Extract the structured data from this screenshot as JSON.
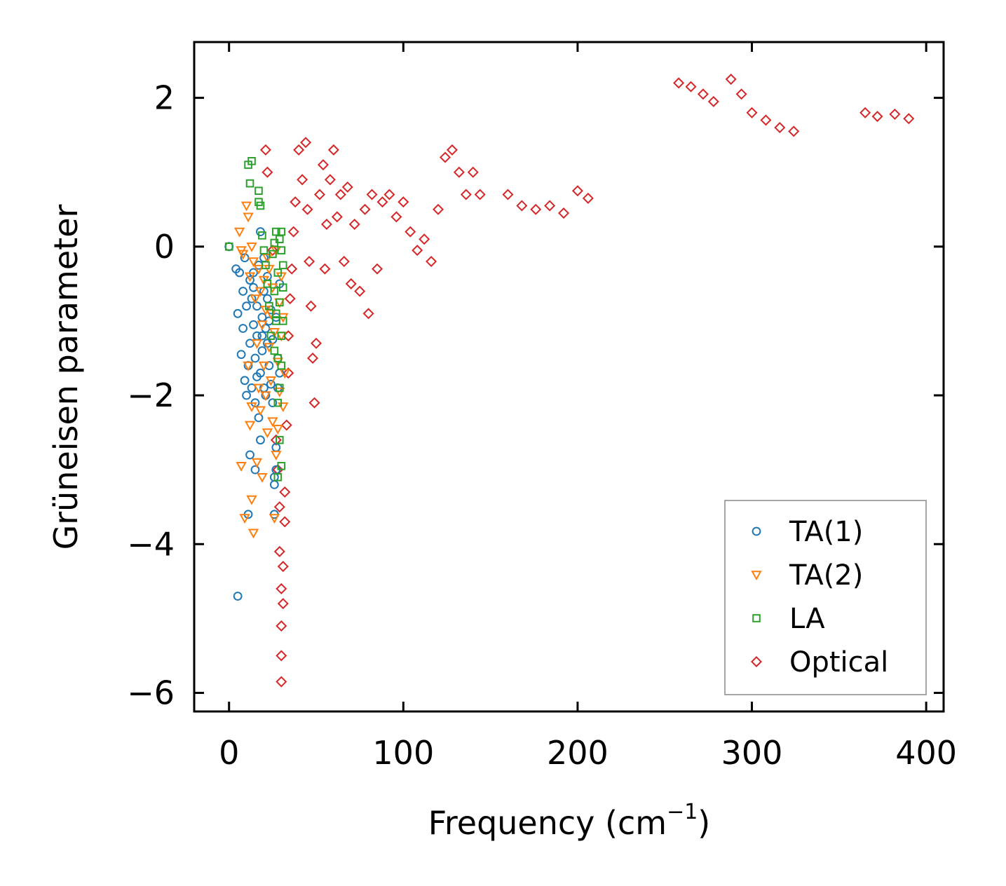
{
  "chart_data": {
    "type": "scatter",
    "title": "",
    "xlabel": "Frequency (cm",
    "xlabel_sup": "−1",
    "xlabel_tail": ")",
    "ylabel": "Grüneisen parameter",
    "xlim": [
      -20,
      410
    ],
    "ylim": [
      -6.25,
      2.75
    ],
    "xticks": [
      0,
      100,
      200,
      300,
      400
    ],
    "xtick_labels": [
      "0",
      "100",
      "200",
      "300",
      "400"
    ],
    "yticks": [
      -6,
      -4,
      -2,
      0,
      2
    ],
    "ytick_labels": [
      "−6",
      "−4",
      "−2",
      "0",
      "2"
    ],
    "grid": false,
    "legend_position": "bottom-right",
    "series": [
      {
        "name": "TA(1)",
        "marker": "circle",
        "color": "#1f77b4",
        "points": [
          [
            0,
            0
          ],
          [
            4,
            -0.3
          ],
          [
            5,
            -0.9
          ],
          [
            5,
            -4.7
          ],
          [
            7,
            -1.45
          ],
          [
            8,
            -0.6
          ],
          [
            8,
            -1.1
          ],
          [
            9,
            -1.8
          ],
          [
            10,
            -2.0
          ],
          [
            10,
            -0.8
          ],
          [
            11,
            -3.6
          ],
          [
            11,
            -1.6
          ],
          [
            12,
            -0.45
          ],
          [
            12,
            -1.3
          ],
          [
            12,
            -2.8
          ],
          [
            13,
            -0.7
          ],
          [
            13,
            -1.9
          ],
          [
            14,
            -0.55
          ],
          [
            14,
            -1.05
          ],
          [
            15,
            -2.1
          ],
          [
            15,
            -3.0
          ],
          [
            15,
            -1.5
          ],
          [
            16,
            -0.8
          ],
          [
            16,
            -1.2
          ],
          [
            17,
            -2.3
          ],
          [
            17,
            -0.25
          ],
          [
            18,
            -1.7
          ],
          [
            18,
            -2.6
          ],
          [
            19,
            -0.95
          ],
          [
            19,
            -1.4
          ],
          [
            20,
            -1.9
          ],
          [
            20,
            -0.6
          ],
          [
            21,
            -1.1
          ],
          [
            21,
            -2.0
          ],
          [
            22,
            -1.3
          ],
          [
            22,
            -0.7
          ],
          [
            23,
            -1.6
          ],
          [
            23,
            -1.0
          ],
          [
            24,
            -1.85
          ],
          [
            24,
            -0.85
          ],
          [
            25,
            -1.25
          ],
          [
            25,
            -2.1
          ],
          [
            26,
            -3.1
          ],
          [
            26,
            -3.2
          ],
          [
            26,
            -3.6
          ],
          [
            27,
            -0.95
          ],
          [
            27,
            -2.7
          ],
          [
            27,
            -3.0
          ],
          [
            28,
            -1.5
          ],
          [
            28,
            -1.9
          ],
          [
            29,
            -1.7
          ],
          [
            29,
            -0.5
          ],
          [
            18,
            0.2
          ],
          [
            20,
            -0.15
          ],
          [
            22,
            -0.4
          ],
          [
            9,
            -0.15
          ],
          [
            6,
            -0.35
          ],
          [
            14,
            -0.35
          ],
          [
            16,
            -1.75
          ],
          [
            19,
            -1.2
          ]
        ]
      },
      {
        "name": "TA(2)",
        "marker": "triangle",
        "color": "#ff7f0e",
        "points": [
          [
            6,
            0.2
          ],
          [
            7,
            -0.05
          ],
          [
            8,
            -0.1
          ],
          [
            10,
            0.55
          ],
          [
            11,
            0.4
          ],
          [
            12,
            -0.4
          ],
          [
            12,
            -2.4
          ],
          [
            13,
            0.0
          ],
          [
            13,
            -3.4
          ],
          [
            14,
            -0.2
          ],
          [
            14,
            -3.85
          ],
          [
            15,
            -0.7
          ],
          [
            16,
            -1.3
          ],
          [
            16,
            -2.9
          ],
          [
            17,
            -1.9
          ],
          [
            17,
            -0.3
          ],
          [
            18,
            -0.6
          ],
          [
            18,
            -2.2
          ],
          [
            19,
            -1.05
          ],
          [
            19,
            -3.1
          ],
          [
            20,
            -0.45
          ],
          [
            20,
            -1.6
          ],
          [
            21,
            -2.0
          ],
          [
            21,
            -0.85
          ],
          [
            22,
            -2.5
          ],
          [
            22,
            -0.15
          ],
          [
            23,
            -1.35
          ],
          [
            23,
            -0.3
          ],
          [
            24,
            -0.9
          ],
          [
            24,
            -1.8
          ],
          [
            25,
            -2.35
          ],
          [
            25,
            -0.55
          ],
          [
            26,
            -1.15
          ],
          [
            26,
            -3.65
          ],
          [
            27,
            -2.8
          ],
          [
            27,
            -0.05
          ],
          [
            28,
            -1.55
          ],
          [
            28,
            -2.45
          ],
          [
            29,
            -0.75
          ],
          [
            29,
            -1.95
          ],
          [
            30,
            -0.4
          ],
          [
            30,
            -1.2
          ],
          [
            31,
            -2.15
          ],
          [
            31,
            -0.95
          ],
          [
            32,
            -1.7
          ],
          [
            7,
            -2.95
          ],
          [
            9,
            -3.65
          ],
          [
            11,
            -1.6
          ],
          [
            13,
            -2.15
          ]
        ]
      },
      {
        "name": "LA",
        "marker": "square",
        "color": "#2ca02c",
        "points": [
          [
            0,
            0
          ],
          [
            11,
            1.1
          ],
          [
            12,
            0.85
          ],
          [
            13,
            1.15
          ],
          [
            17,
            0.75
          ],
          [
            17,
            0.6
          ],
          [
            18,
            0.55
          ],
          [
            19,
            0.15
          ],
          [
            20,
            -0.05
          ],
          [
            21,
            -0.25
          ],
          [
            22,
            -0.5
          ],
          [
            23,
            -0.8
          ],
          [
            24,
            -1.2
          ],
          [
            25,
            -0.1
          ],
          [
            26,
            0.05
          ],
          [
            26,
            -0.6
          ],
          [
            27,
            0.2
          ],
          [
            27,
            -1.0
          ],
          [
            28,
            -1.5
          ],
          [
            28,
            -0.35
          ],
          [
            29,
            0.1
          ],
          [
            29,
            -0.75
          ],
          [
            30,
            -1.2
          ],
          [
            30,
            -0.05
          ],
          [
            31,
            -0.55
          ],
          [
            31,
            -1.0
          ],
          [
            29,
            -1.9
          ],
          [
            30,
            -1.6
          ],
          [
            28,
            -2.1
          ],
          [
            29,
            -2.6
          ],
          [
            30,
            -2.95
          ],
          [
            28,
            -3.1
          ],
          [
            27,
            -0.9
          ],
          [
            26,
            -1.4
          ],
          [
            31,
            -0.25
          ],
          [
            30,
            0.2
          ]
        ]
      },
      {
        "name": "Optical",
        "marker": "diamond",
        "color": "#d62728",
        "points": [
          [
            21,
            1.3
          ],
          [
            22,
            1.0
          ],
          [
            25,
            -0.05
          ],
          [
            27,
            -2.6
          ],
          [
            28,
            -3.0
          ],
          [
            29,
            -3.5
          ],
          [
            29,
            -4.1
          ],
          [
            30,
            -4.6
          ],
          [
            30,
            -5.1
          ],
          [
            30,
            -5.85
          ],
          [
            30,
            -5.5
          ],
          [
            31,
            -4.8
          ],
          [
            31,
            -4.3
          ],
          [
            32,
            -3.7
          ],
          [
            32,
            -3.3
          ],
          [
            33,
            -2.4
          ],
          [
            34,
            -1.7
          ],
          [
            34,
            -1.2
          ],
          [
            35,
            -0.7
          ],
          [
            36,
            -0.3
          ],
          [
            37,
            0.2
          ],
          [
            38,
            0.6
          ],
          [
            40,
            1.3
          ],
          [
            42,
            0.9
          ],
          [
            44,
            1.4
          ],
          [
            45,
            0.5
          ],
          [
            46,
            -0.2
          ],
          [
            47,
            -0.8
          ],
          [
            48,
            -1.5
          ],
          [
            49,
            -2.1
          ],
          [
            50,
            -1.3
          ],
          [
            52,
            0.7
          ],
          [
            54,
            1.1
          ],
          [
            55,
            -0.3
          ],
          [
            56,
            0.3
          ],
          [
            58,
            0.9
          ],
          [
            60,
            1.3
          ],
          [
            62,
            0.4
          ],
          [
            64,
            0.7
          ],
          [
            66,
            -0.2
          ],
          [
            68,
            0.8
          ],
          [
            70,
            -0.5
          ],
          [
            72,
            0.3
          ],
          [
            75,
            -0.6
          ],
          [
            78,
            0.5
          ],
          [
            80,
            -0.9
          ],
          [
            82,
            0.7
          ],
          [
            85,
            -0.3
          ],
          [
            88,
            0.6
          ],
          [
            92,
            0.7
          ],
          [
            96,
            0.4
          ],
          [
            100,
            0.6
          ],
          [
            104,
            0.2
          ],
          [
            108,
            -0.05
          ],
          [
            112,
            0.1
          ],
          [
            116,
            -0.2
          ],
          [
            120,
            0.5
          ],
          [
            124,
            1.2
          ],
          [
            128,
            1.3
          ],
          [
            132,
            1.0
          ],
          [
            136,
            0.7
          ],
          [
            140,
            1.0
          ],
          [
            144,
            0.7
          ],
          [
            160,
            0.7
          ],
          [
            168,
            0.55
          ],
          [
            176,
            0.5
          ],
          [
            184,
            0.55
          ],
          [
            192,
            0.45
          ],
          [
            200,
            0.75
          ],
          [
            206,
            0.65
          ],
          [
            258,
            2.2
          ],
          [
            265,
            2.15
          ],
          [
            272,
            2.05
          ],
          [
            278,
            1.95
          ],
          [
            288,
            2.25
          ],
          [
            294,
            2.05
          ],
          [
            300,
            1.8
          ],
          [
            308,
            1.7
          ],
          [
            316,
            1.6
          ],
          [
            324,
            1.55
          ],
          [
            365,
            1.8
          ],
          [
            372,
            1.75
          ],
          [
            382,
            1.78
          ],
          [
            390,
            1.72
          ]
        ]
      }
    ]
  }
}
